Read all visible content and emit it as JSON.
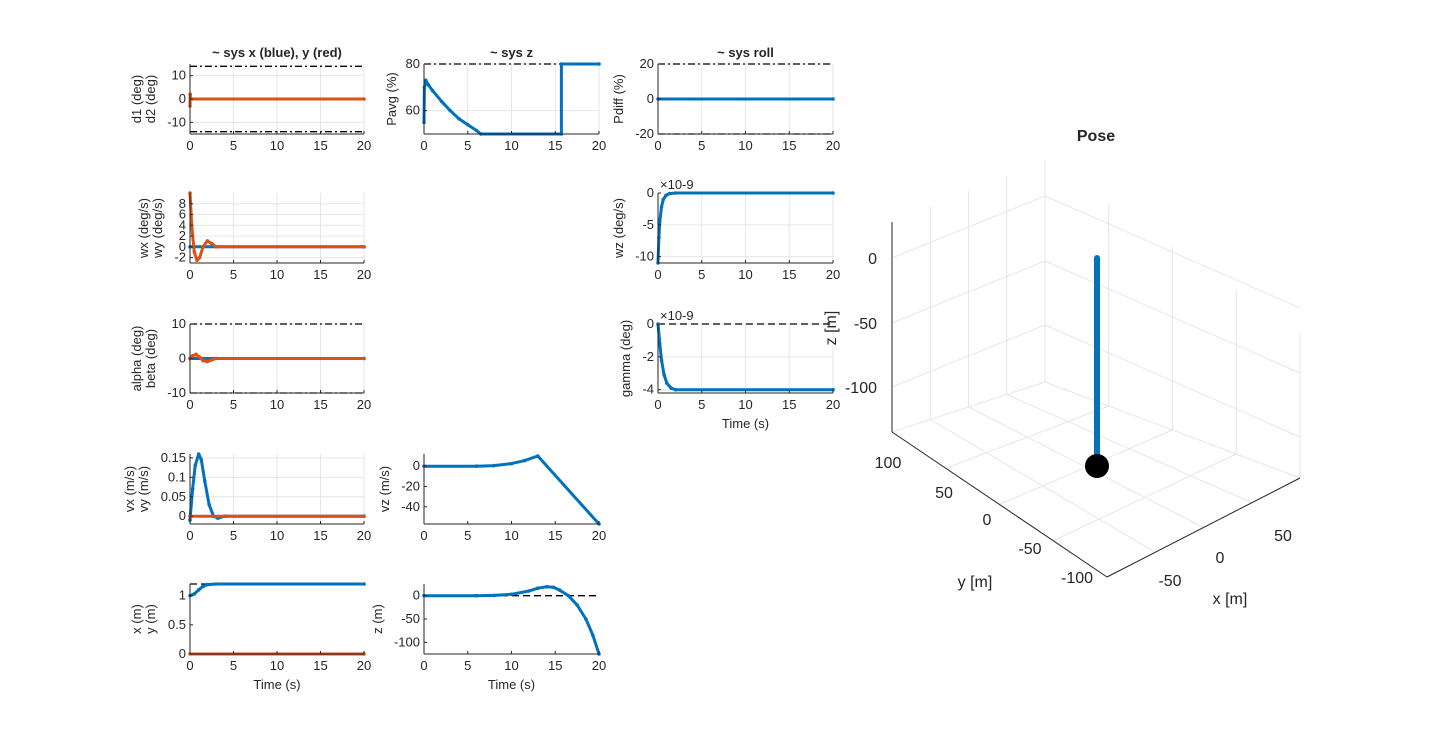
{
  "colors": {
    "blue": "#0072BD",
    "red": "#D95319",
    "axis": "#262626",
    "grid": "#e6e6e6"
  },
  "chart_data": [
    {
      "id": "d",
      "type": "line",
      "title": "~ sys x (blue), y (red)",
      "ylabel": [
        "d1 (deg)",
        "d2 (deg)"
      ],
      "xlabel": "",
      "xlim": [
        0,
        20
      ],
      "ylim": [
        -15,
        15
      ],
      "xticks": [
        0,
        5,
        10,
        15,
        20
      ],
      "yticks": [
        -10,
        0,
        10
      ],
      "yticklabels": [
        "-10",
        "0",
        "10"
      ],
      "grid": true,
      "refs": [
        {
          "y": 14,
          "style": "dashdot"
        },
        {
          "y": -14,
          "style": "dashdot"
        }
      ],
      "series": [
        {
          "color": "red",
          "points": [
            [
              0,
              -3
            ],
            [
              0.02,
              2
            ],
            [
              0.05,
              0
            ],
            [
              20,
              0
            ]
          ]
        }
      ]
    },
    {
      "id": "pavg",
      "type": "line",
      "title": "~ sys z",
      "ylabel": [
        "Pavg (%)"
      ],
      "xlabel": "",
      "xlim": [
        0,
        20
      ],
      "ylim": [
        50,
        80
      ],
      "xticks": [
        0,
        5,
        10,
        15,
        20
      ],
      "yticks": [
        60,
        80
      ],
      "yticklabels": [
        "60",
        "80"
      ],
      "grid": true,
      "refs": [
        {
          "y": 80,
          "style": "dashdot"
        }
      ],
      "series": [
        {
          "color": "blue",
          "points": [
            [
              0,
              55
            ],
            [
              0.05,
              70
            ],
            [
              0.2,
              73
            ],
            [
              0.5,
              71
            ],
            [
              1,
              68.5
            ],
            [
              2,
              64
            ],
            [
              3,
              60
            ],
            [
              4,
              56.5
            ],
            [
              5,
              54
            ],
            [
              6,
              51.5
            ],
            [
              6.5,
              50
            ],
            [
              15.7,
              50
            ],
            [
              15.7,
              80
            ],
            [
              20,
              80
            ]
          ]
        }
      ]
    },
    {
      "id": "pdiff",
      "type": "line",
      "title": "~ sys roll",
      "ylabel": [
        "Pdiff (%)"
      ],
      "xlabel": "",
      "xlim": [
        0,
        20
      ],
      "ylim": [
        -20,
        20
      ],
      "xticks": [
        0,
        5,
        10,
        15,
        20
      ],
      "yticks": [
        -20,
        0,
        20
      ],
      "yticklabels": [
        "-20",
        "0",
        "20"
      ],
      "grid": true,
      "refs": [
        {
          "y": 20,
          "style": "dashdot"
        },
        {
          "y": -20,
          "style": "dashdot"
        }
      ],
      "series": [
        {
          "color": "blue",
          "points": [
            [
              0,
              0
            ],
            [
              20,
              0
            ]
          ]
        }
      ]
    },
    {
      "id": "w",
      "type": "line",
      "title": "",
      "ylabel": [
        "wx (deg/s)",
        "wy (deg/s)"
      ],
      "xlabel": "",
      "xlim": [
        0,
        20
      ],
      "ylim": [
        -3,
        10
      ],
      "xticks": [
        0,
        5,
        10,
        15,
        20
      ],
      "yticks": [
        -2,
        0,
        2,
        4,
        6,
        8
      ],
      "yticklabels": [
        "-2",
        "0",
        "2",
        "4",
        "6",
        "8"
      ],
      "grid": true,
      "refs": [],
      "series": [
        {
          "color": "blue",
          "points": [
            [
              0,
              0
            ],
            [
              20,
              0
            ]
          ]
        },
        {
          "color": "red",
          "points": [
            [
              0,
              10
            ],
            [
              0.2,
              4
            ],
            [
              0.5,
              -1
            ],
            [
              0.8,
              -2.5
            ],
            [
              1.1,
              -2
            ],
            [
              1.5,
              0
            ],
            [
              2,
              1.1
            ],
            [
              2.5,
              0.6
            ],
            [
              3,
              0
            ],
            [
              20,
              0
            ]
          ]
        }
      ]
    },
    {
      "id": "wz",
      "type": "line",
      "title": "",
      "ylabel": [
        "wz (deg/s)"
      ],
      "xlabel": "",
      "xlim": [
        0,
        20
      ],
      "ylim": [
        -11,
        0
      ],
      "xticks": [
        0,
        5,
        10,
        15,
        20
      ],
      "yticks": [
        -10,
        -5,
        0
      ],
      "yticklabels": [
        "-10",
        "-5",
        "0"
      ],
      "exponent": "×10-9",
      "grid": true,
      "refs": [],
      "series": [
        {
          "color": "blue",
          "points": [
            [
              0,
              -11
            ],
            [
              0.1,
              -7
            ],
            [
              0.2,
              -4.5
            ],
            [
              0.4,
              -2.2
            ],
            [
              0.6,
              -1
            ],
            [
              0.9,
              -0.4
            ],
            [
              1.3,
              -0.1
            ],
            [
              2,
              0
            ],
            [
              20,
              0
            ]
          ]
        }
      ]
    },
    {
      "id": "ab",
      "type": "line",
      "title": "",
      "ylabel": [
        "alpha (deg)",
        "beta (deg)"
      ],
      "xlabel": "",
      "xlim": [
        0,
        20
      ],
      "ylim": [
        -10,
        10
      ],
      "xticks": [
        0,
        5,
        10,
        15,
        20
      ],
      "yticks": [
        -10,
        0,
        10
      ],
      "yticklabels": [
        "-10",
        "0",
        "10"
      ],
      "grid": true,
      "refs": [
        {
          "y": 10,
          "style": "dashdot"
        },
        {
          "y": -10,
          "style": "dashdot"
        }
      ],
      "series": [
        {
          "color": "blue",
          "points": [
            [
              0,
              0
            ],
            [
              20,
              0
            ]
          ]
        },
        {
          "color": "red",
          "points": [
            [
              0,
              0
            ],
            [
              0.3,
              0.8
            ],
            [
              0.7,
              1.2
            ],
            [
              1.1,
              0.4
            ],
            [
              1.5,
              -0.6
            ],
            [
              2,
              -0.9
            ],
            [
              2.5,
              -0.4
            ],
            [
              3,
              0
            ],
            [
              20,
              0
            ]
          ]
        }
      ]
    },
    {
      "id": "gamma",
      "type": "line",
      "title": "",
      "ylabel": [
        "gamma (deg)"
      ],
      "xlabel": "Time (s)",
      "xlim": [
        0,
        20
      ],
      "ylim": [
        -4.2,
        0
      ],
      "xticks": [
        0,
        5,
        10,
        15,
        20
      ],
      "yticks": [
        -4,
        -2,
        0
      ],
      "yticklabels": [
        "-4",
        "-2",
        "0"
      ],
      "exponent": "×10-9",
      "grid": true,
      "refs": [
        {
          "y": 0,
          "style": "dash"
        }
      ],
      "series": [
        {
          "color": "blue",
          "points": [
            [
              0,
              0
            ],
            [
              0.2,
              -1.2
            ],
            [
              0.4,
              -2.2
            ],
            [
              0.7,
              -3.1
            ],
            [
              1,
              -3.6
            ],
            [
              1.5,
              -3.9
            ],
            [
              2,
              -4
            ],
            [
              20,
              -4
            ]
          ]
        }
      ]
    },
    {
      "id": "v",
      "type": "line",
      "title": "",
      "ylabel": [
        "vx (m/s)",
        "vy (m/s)"
      ],
      "xlabel": "",
      "xlim": [
        0,
        20
      ],
      "ylim": [
        -0.02,
        0.16
      ],
      "xticks": [
        0,
        5,
        10,
        15,
        20
      ],
      "yticks": [
        0,
        0.05,
        0.1,
        0.15
      ],
      "yticklabels": [
        "0",
        "0.05",
        "0.1",
        "0.15"
      ],
      "grid": true,
      "refs": [],
      "series": [
        {
          "color": "blue",
          "points": [
            [
              0,
              -0.01
            ],
            [
              0.3,
              0.07
            ],
            [
              0.6,
              0.13
            ],
            [
              1,
              0.16
            ],
            [
              1.3,
              0.145
            ],
            [
              1.7,
              0.09
            ],
            [
              2.2,
              0.03
            ],
            [
              2.7,
              0
            ],
            [
              3.2,
              -0.005
            ],
            [
              4,
              0
            ],
            [
              20,
              0
            ]
          ]
        },
        {
          "color": "red",
          "points": [
            [
              0,
              0
            ],
            [
              20,
              0
            ]
          ]
        }
      ]
    },
    {
      "id": "vz",
      "type": "line",
      "title": "",
      "ylabel": [
        "vz (m/s)"
      ],
      "xlabel": "",
      "xlim": [
        0,
        20
      ],
      "ylim": [
        -57,
        12
      ],
      "xticks": [
        0,
        5,
        10,
        15,
        20
      ],
      "yticks": [
        -40,
        -20,
        0
      ],
      "yticklabels": [
        "-40",
        "-20",
        "0"
      ],
      "grid": false,
      "refs": [],
      "series": [
        {
          "color": "blue",
          "points": [
            [
              0,
              0
            ],
            [
              6,
              0
            ],
            [
              8,
              0.6
            ],
            [
              10,
              2.5
            ],
            [
              11.5,
              5.5
            ],
            [
              13,
              10
            ],
            [
              20,
              -57
            ]
          ]
        }
      ]
    },
    {
      "id": "xy",
      "type": "line",
      "title": "",
      "ylabel": [
        "x (m)",
        "y (m)"
      ],
      "xlabel": "Time (s)",
      "xlim": [
        0,
        20
      ],
      "ylim": [
        0,
        1.2
      ],
      "xticks": [
        0,
        5,
        10,
        15,
        20
      ],
      "yticks": [
        0,
        0.5,
        1
      ],
      "yticklabels": [
        "0",
        "0.5",
        "1"
      ],
      "grid": false,
      "refs": [
        {
          "y": 1.2,
          "style": "dash"
        },
        {
          "y": 0,
          "style": "dash"
        }
      ],
      "series": [
        {
          "color": "blue",
          "points": [
            [
              0,
              1
            ],
            [
              0.5,
              1.03
            ],
            [
              1,
              1.1
            ],
            [
              1.5,
              1.16
            ],
            [
              2,
              1.19
            ],
            [
              3,
              1.2
            ],
            [
              20,
              1.2
            ]
          ]
        },
        {
          "color": "red",
          "points": [
            [
              0,
              0
            ],
            [
              20,
              0
            ]
          ]
        }
      ]
    },
    {
      "id": "z",
      "type": "line",
      "title": "",
      "ylabel": [
        "z (m)"
      ],
      "xlabel": "Time (s)",
      "xlim": [
        0,
        20
      ],
      "ylim": [
        -125,
        25
      ],
      "xticks": [
        0,
        5,
        10,
        15,
        20
      ],
      "yticks": [
        -100,
        -50,
        0
      ],
      "yticklabels": [
        "-100",
        "-50",
        "0"
      ],
      "grid": false,
      "refs": [
        {
          "y": 0,
          "style": "dash"
        }
      ],
      "series": [
        {
          "color": "blue",
          "points": [
            [
              0,
              0
            ],
            [
              6,
              0
            ],
            [
              8,
              0.5
            ],
            [
              10,
              3
            ],
            [
              12,
              10
            ],
            [
              13,
              16
            ],
            [
              14,
              19
            ],
            [
              14.8,
              18
            ],
            [
              15.5,
              12
            ],
            [
              16.5,
              0
            ],
            [
              17.5,
              -20
            ],
            [
              18.5,
              -50
            ],
            [
              19.3,
              -85
            ],
            [
              20,
              -125
            ]
          ]
        }
      ]
    },
    {
      "id": "pose",
      "type": "scatter3d",
      "title": "Pose",
      "xlabel": "x [m]",
      "ylabel": "y [m]",
      "zlabel": "z [m]",
      "xticks": [
        "-50",
        "0",
        "50"
      ],
      "yticks": [
        "100",
        "50",
        "0",
        "-50",
        "-100"
      ],
      "zticks": [
        "0",
        "-50",
        "-100"
      ],
      "trajectory": {
        "x": 0,
        "y": 0,
        "z_top": 0,
        "z_bottom": -125,
        "color": "blue"
      },
      "marker": {
        "z": -125,
        "color": "black"
      }
    }
  ]
}
